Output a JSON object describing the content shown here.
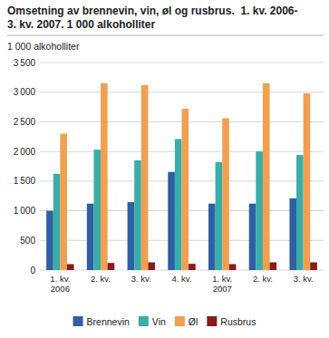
{
  "chart_data": {
    "type": "bar",
    "title": "Omsetning av brennevin, vin, øl og rusbrus.  1. kv. 2006-\n3. kv. 2007. 1 000 alkoholliter",
    "y_label": "1 000 alkoholliter",
    "categories": [
      "1. kv.\n2006",
      "2. kv.",
      "3. kv.",
      "4. kv.",
      "1. kv.\n2007",
      "2. kv.",
      "3. kv."
    ],
    "series": [
      {
        "name": "Brennevin",
        "color": "#2E5FA3",
        "values": [
          1000,
          1120,
          1145,
          1655,
          1120,
          1120,
          1210
        ]
      },
      {
        "name": "Vin",
        "color": "#3AADA8",
        "values": [
          1620,
          2030,
          1850,
          2210,
          1820,
          2000,
          1940
        ]
      },
      {
        "name": "Øl",
        "color": "#F0A050",
        "values": [
          2300,
          3150,
          3120,
          2720,
          2560,
          3150,
          2980
        ]
      },
      {
        "name": "Rusbrus",
        "color": "#8B1A1A",
        "values": [
          100,
          120,
          130,
          105,
          100,
          130,
          130
        ]
      }
    ],
    "ylim": [
      0,
      3500
    ],
    "yticks": [
      0,
      500,
      {
        "value": 1000,
        "label": "1 000"
      },
      {
        "value": 1500,
        "label": "1 500"
      },
      {
        "value": 2000,
        "label": "2 000"
      },
      {
        "value": 2500,
        "label": "2 500"
      },
      {
        "value": 3000,
        "label": "3 000"
      },
      {
        "value": 3500,
        "label": "3 500"
      }
    ],
    "grid": true,
    "legend": "bottom"
  }
}
